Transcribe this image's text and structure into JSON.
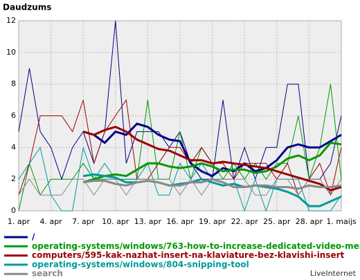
{
  "chart_data": {
    "type": "line",
    "title": "Daudzums",
    "footer": "LiveInternet",
    "categories": [
      "1. apr",
      null,
      null,
      "4. apr",
      null,
      null,
      "7. apr",
      null,
      null,
      "10. apr",
      null,
      null,
      "13. apr",
      null,
      null,
      "16. apr",
      null,
      null,
      "19. apr",
      null,
      null,
      "22. apr",
      null,
      null,
      "25. apr",
      null,
      null,
      "28. apr",
      null,
      null,
      "1. maijs"
    ],
    "ylim": [
      0,
      12
    ],
    "yticks": [
      0,
      2,
      4,
      6,
      8,
      10,
      12
    ],
    "grid": true,
    "series": [
      {
        "name": "/",
        "color": "#000088",
        "values": [
          5,
          9,
          5,
          4,
          2,
          4,
          5,
          3,
          5,
          12,
          3,
          5,
          5,
          5,
          4,
          5,
          3,
          2,
          2,
          7,
          2,
          4,
          2,
          4,
          4,
          8,
          8,
          2,
          2,
          3,
          6
        ],
        "trend": [
          null,
          null,
          null,
          null,
          null,
          null,
          5,
          4.8,
          4.3,
          5,
          4.8,
          5.5,
          5.3,
          4.8,
          4.5,
          4.4,
          3,
          2.5,
          2.2,
          2.7,
          2.5,
          3,
          2.5,
          2.7,
          3.2,
          4,
          4.2,
          4,
          4,
          4.4,
          4.8
        ]
      },
      {
        "name": "operating-systems/windows/763-how-to-increase-dedicated-video-memory",
        "color": "#009900",
        "values": [
          0,
          3,
          1,
          2,
          2,
          2,
          3,
          2,
          2,
          2,
          2,
          2,
          7,
          2,
          2,
          5,
          2,
          4,
          3,
          2,
          3,
          2,
          3,
          2,
          3,
          3,
          6,
          2,
          4,
          8,
          2
        ],
        "trend": [
          null,
          null,
          null,
          null,
          null,
          null,
          1.8,
          2,
          2.2,
          2.3,
          2.2,
          2.6,
          3,
          3,
          2.8,
          2.7,
          2.8,
          3,
          2.8,
          2.5,
          2.6,
          2.6,
          2.4,
          2.5,
          2.8,
          3.3,
          3.5,
          3.2,
          3.5,
          4.3,
          4.2
        ]
      },
      {
        "name": "computers/595-kak-nazhat-insert-na-klaviature-bez-klavishi-insert",
        "color": "#990000",
        "values": [
          1,
          3,
          6,
          6,
          6,
          5,
          7,
          3,
          5,
          6,
          7,
          2,
          2,
          3,
          4,
          4,
          3,
          4,
          3,
          3,
          2,
          3,
          3,
          3,
          2,
          3,
          1,
          2,
          3,
          1,
          4
        ],
        "trend": [
          null,
          null,
          null,
          null,
          null,
          null,
          5,
          4.8,
          5.1,
          5.3,
          5,
          4.5,
          4.2,
          3.9,
          3.8,
          3.5,
          3.2,
          3.2,
          3,
          3.1,
          3,
          2.9,
          2.8,
          2.7,
          2.5,
          2.3,
          2.1,
          1.9,
          1.7,
          1.3,
          1.5
        ]
      },
      {
        "name": "operating-systems/windows/804-snipping-tool",
        "color": "#009999",
        "values": [
          2,
          3,
          4,
          1,
          0,
          0,
          4,
          2,
          3,
          2,
          2,
          2,
          3,
          1,
          1,
          3,
          2,
          3,
          2,
          2,
          2,
          0,
          2,
          0,
          2,
          2,
          2,
          0,
          0,
          0,
          1
        ],
        "trend": [
          null,
          null,
          null,
          null,
          null,
          null,
          2.2,
          2.3,
          2.2,
          2.1,
          1.8,
          1.8,
          1.9,
          1.8,
          1.6,
          1.7,
          1.8,
          2,
          1.8,
          1.6,
          1.7,
          1.5,
          1.6,
          1.5,
          1.4,
          1.2,
          0.9,
          0.3,
          0.3,
          0.6,
          0.9
        ]
      },
      {
        "name": "search",
        "color": "#888888",
        "values": [
          1,
          2,
          1,
          1,
          1,
          2,
          2,
          1,
          2,
          2,
          1,
          2,
          2,
          2,
          2,
          1,
          2,
          1,
          2,
          2,
          2,
          2,
          1,
          1,
          2,
          2,
          1,
          2,
          2,
          1,
          2
        ],
        "trend": [
          null,
          null,
          null,
          null,
          null,
          null,
          1.8,
          1.9,
          1.9,
          1.7,
          1.6,
          1.8,
          1.9,
          1.8,
          1.6,
          1.6,
          1.8,
          1.8,
          2,
          1.8,
          1.5,
          1.5,
          1.6,
          1.6,
          1.5,
          1.5,
          1.4,
          1.6,
          1.5,
          1.5,
          1.6
        ]
      }
    ]
  }
}
